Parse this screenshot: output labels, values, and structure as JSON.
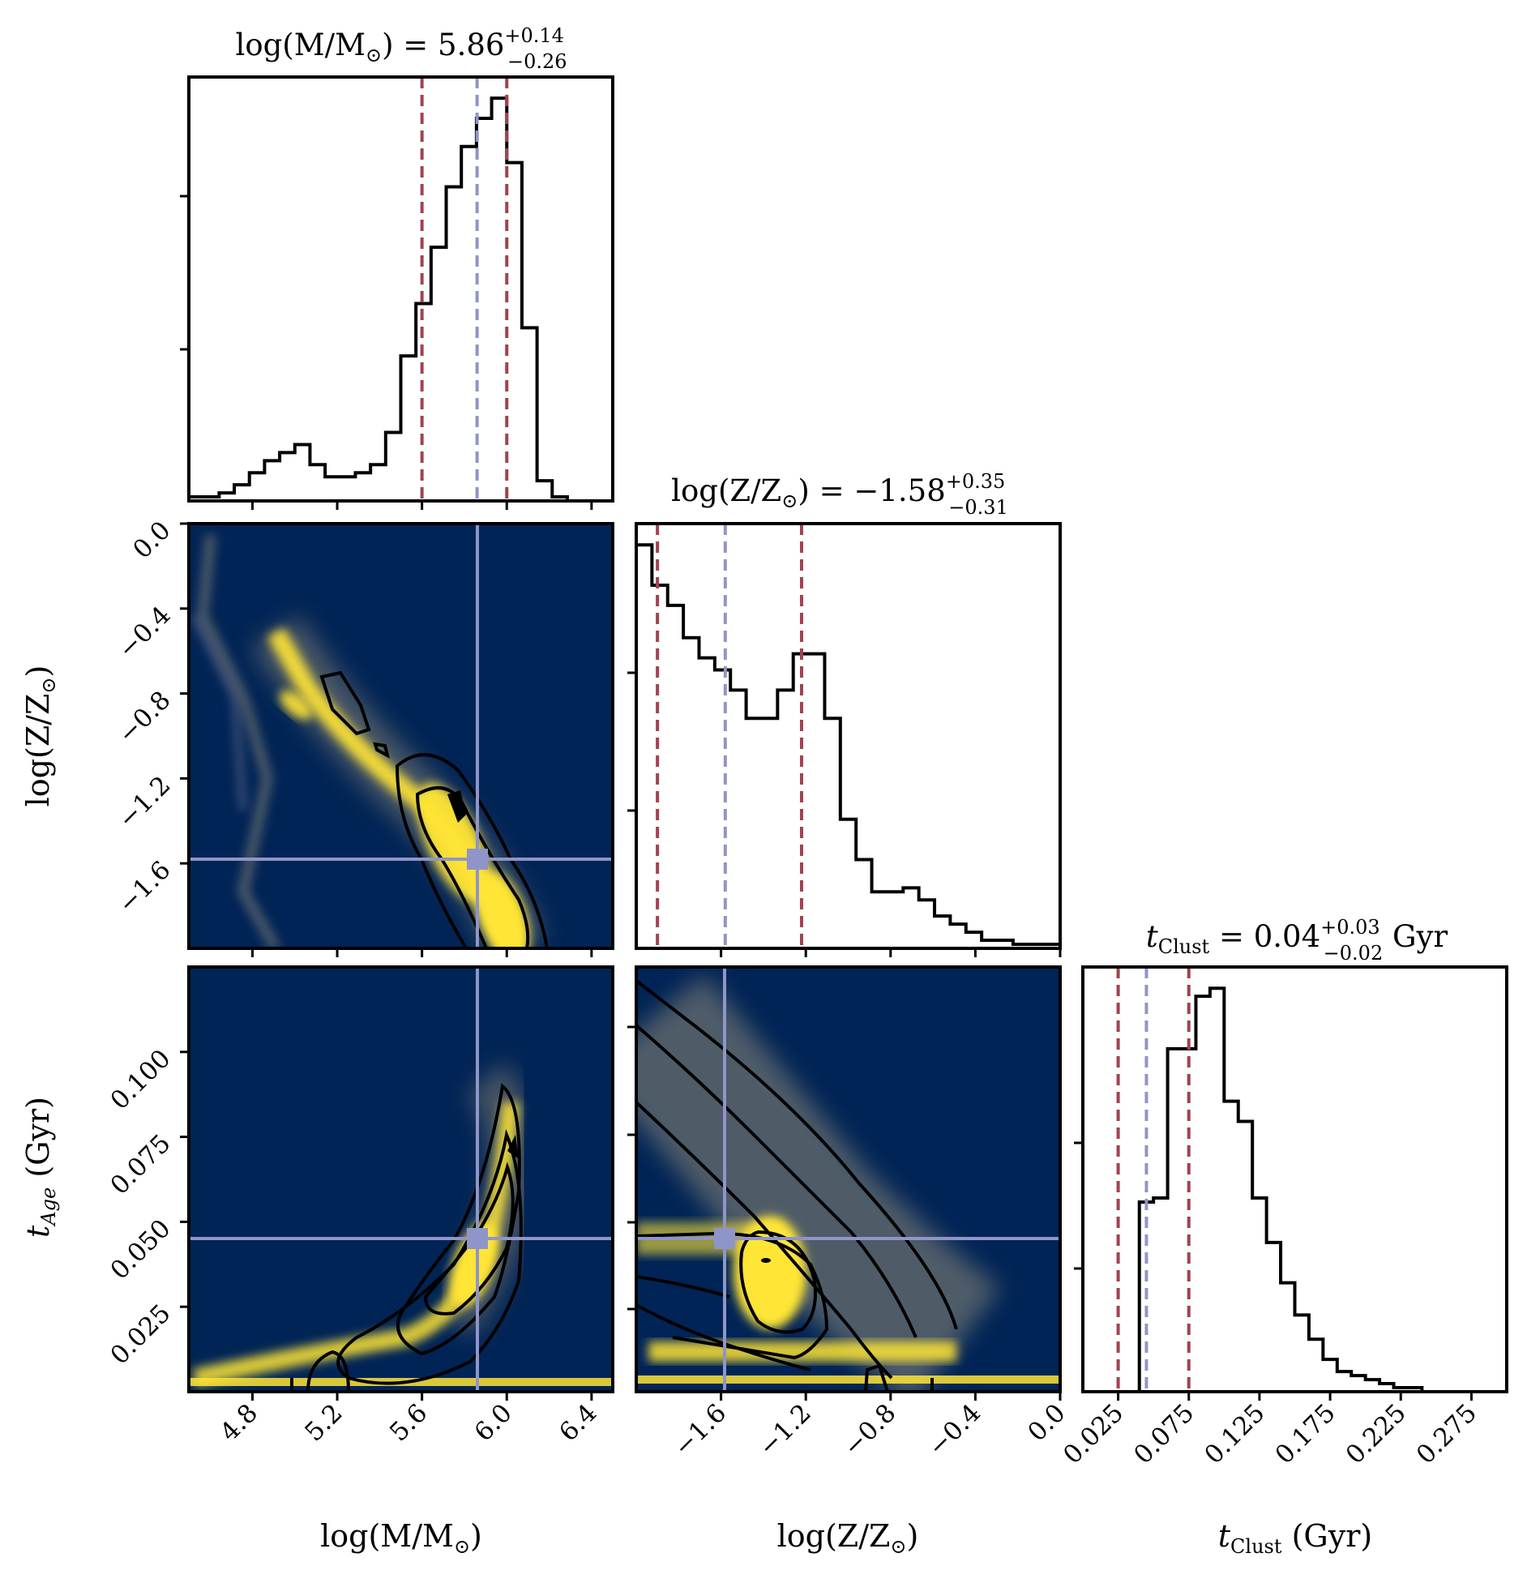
{
  "chart_data": {
    "type": "corner",
    "colors": {
      "background": "#012456",
      "density_high": "#ffe536",
      "median_line": "#8f95c8",
      "quantile_line": "#a0434e",
      "hist_line": "#000000"
    },
    "parameters": [
      {
        "key": "mass",
        "axis_label_main": "log(M/M",
        "axis_label_sub": "⊙",
        "axis_label_end": ")",
        "title_main": "log(M/M",
        "title_sub": "⊙",
        "title_value": ") = 5.86",
        "title_plus": "+0.14",
        "title_minus": "−0.26",
        "title_suffix": "",
        "range": [
          4.5,
          6.5
        ],
        "ticks": [
          "4.8",
          "5.2",
          "5.6",
          "6.0",
          "6.4"
        ],
        "tick_values": [
          4.8,
          5.2,
          5.6,
          6.0,
          6.4
        ],
        "median": 5.86,
        "q16": 5.6,
        "q84": 6.0,
        "hist": [
          0.01,
          0.01,
          0.02,
          0.04,
          0.07,
          0.1,
          0.12,
          0.14,
          0.09,
          0.06,
          0.06,
          0.07,
          0.09,
          0.17,
          0.36,
          0.49,
          0.63,
          0.78,
          0.88,
          0.95,
          1.0,
          0.84,
          0.43,
          0.05,
          0.01,
          0.0,
          0.0,
          0.0
        ]
      },
      {
        "key": "metallicity",
        "axis_label_main": "log(Z/Z",
        "axis_label_sub": "⊙",
        "axis_label_end": ")",
        "title_main": "log(Z/Z",
        "title_sub": "⊙",
        "title_value": ") = −1.58",
        "title_plus": "+0.35",
        "title_minus": "−0.31",
        "title_suffix": "",
        "range": [
          -2.0,
          0.0
        ],
        "ticks": [
          "−1.6",
          "−1.2",
          "−0.8",
          "−0.4",
          "0.0"
        ],
        "tick_values": [
          -1.6,
          -1.2,
          -0.8,
          -0.4,
          0.0
        ],
        "y_ticks": [
          "0.0",
          "−0.4",
          "−0.8",
          "−1.2",
          "−1.6"
        ],
        "y_tick_values": [
          0.0,
          -0.4,
          -0.8,
          -1.2,
          -1.6
        ],
        "median": -1.58,
        "q16": -1.9,
        "q84": -1.22,
        "hist": [
          1.0,
          0.9,
          0.85,
          0.77,
          0.72,
          0.69,
          0.64,
          0.57,
          0.57,
          0.64,
          0.73,
          0.73,
          0.57,
          0.32,
          0.22,
          0.14,
          0.14,
          0.15,
          0.12,
          0.08,
          0.06,
          0.04,
          0.02,
          0.02,
          0.01,
          0.01,
          0.01
        ]
      },
      {
        "key": "age",
        "axis_label_main": "t",
        "axis_label_sub": "Clust",
        "axis_label_end": " (Gyr)",
        "y_label_main": "t",
        "y_label_sub": "Age",
        "y_label_end": " (Gyr)",
        "title_main": "t",
        "title_sub": "Clust",
        "title_value": " = 0.04",
        "title_plus": "+0.03",
        "title_minus": "−0.02",
        "title_suffix": " Gyr",
        "range": [
          0.0,
          0.3
        ],
        "ticks": [
          "0.025",
          "0.075",
          "0.125",
          "0.175",
          "0.225",
          "0.275"
        ],
        "tick_values": [
          0.025,
          0.075,
          0.125,
          0.175,
          0.225,
          0.275
        ],
        "y_range": [
          0.0,
          0.125
        ],
        "y_ticks": [
          "0.100",
          "0.075",
          "0.050",
          "0.025"
        ],
        "y_tick_values": [
          0.1,
          0.075,
          0.05,
          0.025
        ],
        "median": 0.045,
        "q16": 0.025,
        "q84": 0.075,
        "hist": [
          0.0,
          0.0,
          0.0,
          0.0,
          0.47,
          0.48,
          0.85,
          0.85,
          0.98,
          1.0,
          0.72,
          0.67,
          0.48,
          0.37,
          0.27,
          0.19,
          0.13,
          0.08,
          0.05,
          0.04,
          0.03,
          0.02,
          0.01,
          0.01,
          0.0,
          0.0,
          0.0,
          0.0,
          0.0,
          0.0
        ]
      }
    ],
    "truth_marker": {
      "mass": 5.86,
      "metallicity": -1.58,
      "age": 0.045
    }
  }
}
